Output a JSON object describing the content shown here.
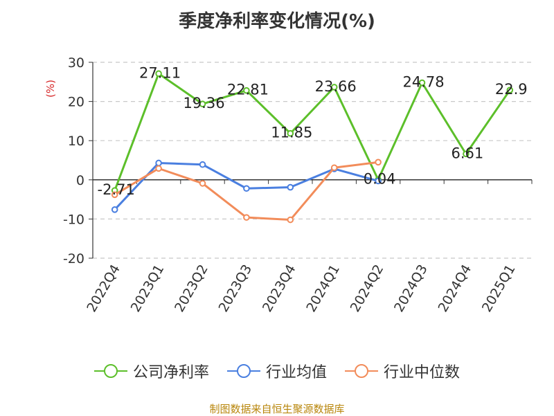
{
  "chart_data": {
    "type": "line",
    "title": "季度净利率变化情况(%)",
    "ylabel": "(%)",
    "categories": [
      "2022Q4",
      "2023Q1",
      "2023Q2",
      "2023Q3",
      "2023Q4",
      "2024Q1",
      "2024Q2",
      "2024Q3",
      "2024Q4",
      "2025Q1"
    ],
    "ylim": [
      -20,
      30
    ],
    "yticks": [
      30,
      20,
      10,
      0,
      -10,
      -20
    ],
    "grid": true,
    "legend_position": "bottom",
    "series": [
      {
        "name": "公司净利率",
        "color": "#5cbf2a",
        "show_labels": true,
        "values": [
          -2.71,
          27.11,
          19.36,
          22.81,
          11.85,
          23.66,
          0.04,
          24.78,
          6.61,
          22.9
        ],
        "labels": [
          "-2.71",
          "27.11",
          "19.36",
          "22.81",
          "11.85",
          "23.66",
          "0.04",
          "24.78",
          "6.61",
          "22.9"
        ]
      },
      {
        "name": "行业均值",
        "color": "#4a7fe0",
        "show_labels": false,
        "values": [
          -7.6,
          4.3,
          3.9,
          -2.2,
          -1.9,
          2.8,
          -0.3,
          null,
          null,
          null
        ]
      },
      {
        "name": "行业中位数",
        "color": "#f28c5a",
        "show_labels": false,
        "values": [
          -3.8,
          2.9,
          -0.9,
          -9.6,
          -10.2,
          3.1,
          4.5,
          null,
          null,
          null
        ]
      }
    ]
  },
  "source_text": "制图数据来自恒生聚源数据库"
}
